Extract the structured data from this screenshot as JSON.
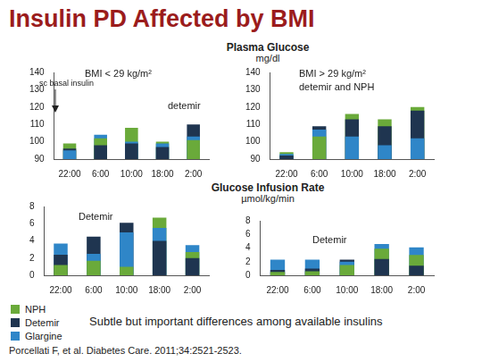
{
  "page": {
    "title": "Insulin PD Affected by BMI",
    "sections": [
      {
        "title": "Plasma Glucose",
        "unit": "mg/dl"
      },
      {
        "title": "Glucose Infusion Rate",
        "unit": "µmol/kg/min"
      }
    ],
    "caption": "Subtle but important differences among available insulins",
    "citation": "Porcellati F, et al. Diabetes Care. 2011;34:2521-2523."
  },
  "chart_data": [
    {
      "type": "bar",
      "annotations": [
        "BMI < 29 kg/m²",
        "sc basal insulin",
        "detemir"
      ],
      "categories": [
        "22:00",
        "6:00",
        "10:00",
        "18:00",
        "2:00"
      ],
      "series": [
        {
          "name": "NPH",
          "color": "#6aaa3a",
          "values": [
            99,
            102,
            108,
            100,
            101
          ]
        },
        {
          "name": "Detemir",
          "color": "#1f3550",
          "values": [
            96,
            98,
            99,
            97,
            110
          ]
        },
        {
          "name": "Glargine",
          "color": "#2f86c8",
          "values": [
            95,
            104,
            100,
            99,
            103
          ]
        }
      ],
      "ylim": [
        90,
        140
      ],
      "yticks": [
        90,
        100,
        110,
        120,
        130,
        140
      ],
      "grid": false,
      "stacked": false
    },
    {
      "type": "bar",
      "annotations": [
        "BMI > 29 kg/m²",
        "detemir and NPH"
      ],
      "categories": [
        "22:00",
        "6:00",
        "10:00",
        "18:00",
        "2:00"
      ],
      "series": [
        {
          "name": "NPH",
          "color": "#6aaa3a",
          "values": [
            94,
            103,
            116,
            113,
            120
          ]
        },
        {
          "name": "Detemir",
          "color": "#1f3550",
          "values": [
            92,
            109,
            113,
            109,
            118
          ]
        },
        {
          "name": "Glargine",
          "color": "#2f86c8",
          "values": [
            93,
            107,
            103,
            98,
            102
          ]
        }
      ],
      "ylim": [
        90,
        140
      ],
      "yticks": [
        90,
        100,
        110,
        120,
        130,
        140
      ],
      "grid": false,
      "stacked": false
    },
    {
      "type": "bar",
      "annotations": [
        "Detemir"
      ],
      "categories": [
        "22:00",
        "6:00",
        "10:00",
        "18:00",
        "2:00"
      ],
      "series": [
        {
          "name": "NPH",
          "color": "#6aaa3a",
          "values": [
            1.2,
            1.7,
            1.0,
            6.7,
            2.7
          ]
        },
        {
          "name": "Detemir",
          "color": "#1f3550",
          "values": [
            2.4,
            4.5,
            6.1,
            4.0,
            2.0
          ]
        },
        {
          "name": "Glargine",
          "color": "#2f86c8",
          "values": [
            3.7,
            2.5,
            5.0,
            5.5,
            3.5
          ]
        }
      ],
      "ylim": [
        0,
        8
      ],
      "yticks": [
        0,
        2,
        4,
        6,
        8
      ],
      "grid": false,
      "stacked": false
    },
    {
      "type": "bar",
      "annotations": [
        "Detemir"
      ],
      "categories": [
        "22:00",
        "6:00",
        "10:00",
        "18:00",
        "2:00"
      ],
      "series": [
        {
          "name": "NPH",
          "color": "#6aaa3a",
          "values": [
            0.5,
            0.6,
            1.5,
            3.9,
            3.0
          ]
        },
        {
          "name": "Detemir",
          "color": "#1f3550",
          "values": [
            0.8,
            1.0,
            2.3,
            2.4,
            1.4
          ]
        },
        {
          "name": "Glargine",
          "color": "#2f86c8",
          "values": [
            2.3,
            2.3,
            2.0,
            4.6,
            4.1
          ]
        }
      ],
      "ylim": [
        0,
        8
      ],
      "yticks": [
        0,
        2,
        4,
        6,
        8
      ],
      "grid": false,
      "stacked": false
    }
  ]
}
